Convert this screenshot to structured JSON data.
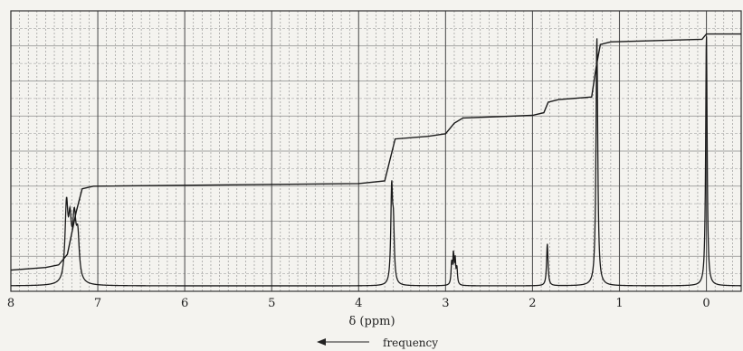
{
  "chart_data": {
    "type": "line",
    "title": "",
    "xlabel": "δ (ppm)",
    "ylabel": "",
    "xlim": [
      8,
      -0.4
    ],
    "x_reversed": true,
    "ylim": [
      0,
      1
    ],
    "grid": true,
    "x_ticks": [
      8,
      7,
      6,
      5,
      4,
      3,
      2,
      1,
      0
    ],
    "direction_label": "frequency",
    "colors": {
      "paper": "#f4f3ef",
      "grid_major": "#555555",
      "grid_minor": "#8a8a8a",
      "trace": "#1a1a1a"
    },
    "series": [
      {
        "kind": "spectrum",
        "peaks": [
          {
            "ppm": 7.36,
            "height": 0.28,
            "width": 0.02
          },
          {
            "ppm": 7.32,
            "height": 0.19,
            "width": 0.02
          },
          {
            "ppm": 7.27,
            "height": 0.23,
            "width": 0.025
          },
          {
            "ppm": 7.23,
            "height": 0.15,
            "width": 0.02
          },
          {
            "ppm": 3.62,
            "height": 0.35,
            "width": 0.012
          },
          {
            "ppm": 3.6,
            "height": 0.2,
            "width": 0.012
          },
          {
            "ppm": 2.93,
            "height": 0.08,
            "width": 0.008
          },
          {
            "ppm": 2.91,
            "height": 0.11,
            "width": 0.008
          },
          {
            "ppm": 2.89,
            "height": 0.09,
            "width": 0.008
          },
          {
            "ppm": 2.87,
            "height": 0.06,
            "width": 0.008
          },
          {
            "ppm": 1.83,
            "height": 0.16,
            "width": 0.01
          },
          {
            "ppm": 1.26,
            "height": 0.95,
            "width": 0.012
          },
          {
            "ppm": 0.0,
            "height": 0.96,
            "width": 0.01
          }
        ]
      },
      {
        "kind": "integral",
        "points": [
          [
            8.0,
            0.06
          ],
          [
            7.6,
            0.07
          ],
          [
            7.45,
            0.08
          ],
          [
            7.35,
            0.12
          ],
          [
            7.25,
            0.28
          ],
          [
            7.18,
            0.37
          ],
          [
            7.05,
            0.38
          ],
          [
            4.0,
            0.39
          ],
          [
            3.7,
            0.4
          ],
          [
            3.64,
            0.48
          ],
          [
            3.58,
            0.56
          ],
          [
            3.2,
            0.57
          ],
          [
            3.0,
            0.58
          ],
          [
            2.9,
            0.62
          ],
          [
            2.8,
            0.64
          ],
          [
            2.0,
            0.65
          ],
          [
            1.87,
            0.66
          ],
          [
            1.82,
            0.7
          ],
          [
            1.7,
            0.71
          ],
          [
            1.32,
            0.72
          ],
          [
            1.27,
            0.83
          ],
          [
            1.22,
            0.92
          ],
          [
            1.1,
            0.93
          ],
          [
            0.05,
            0.94
          ],
          [
            0.0,
            0.96
          ],
          [
            -0.4,
            0.96
          ]
        ]
      }
    ]
  }
}
